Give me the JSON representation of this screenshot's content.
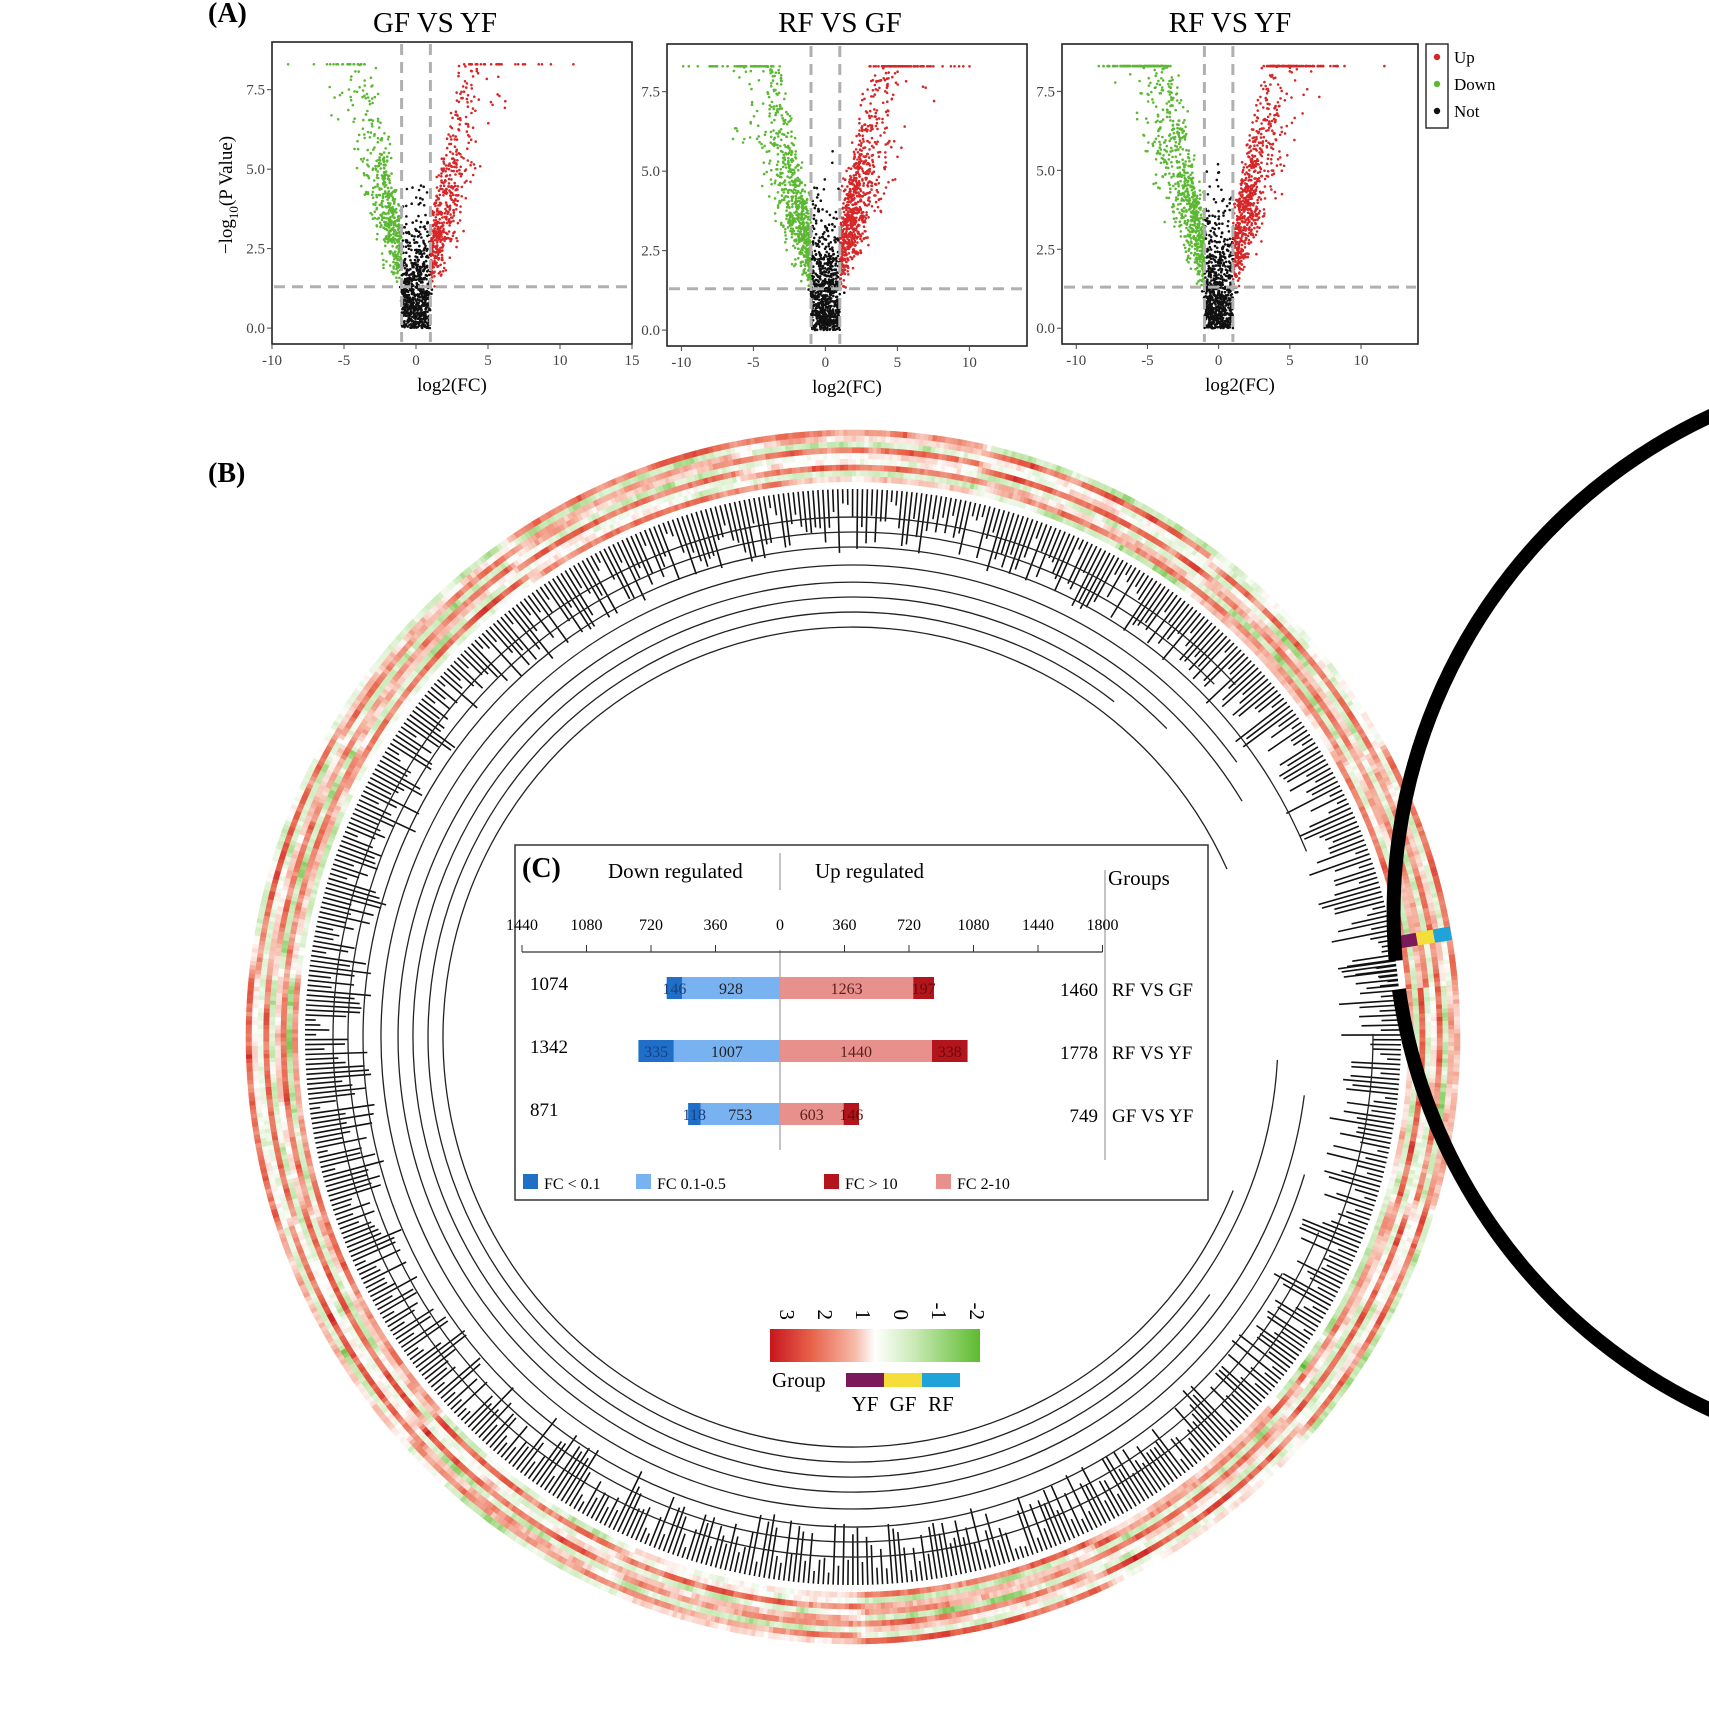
{
  "panels": {
    "a": "(A)",
    "b": "(B)",
    "c": "(C)"
  },
  "chart_data": [
    {
      "type": "scatter",
      "panel": "A",
      "volcano": true,
      "xlabel": "log2(FC)",
      "ylabel_sub": "10",
      "ylabel_main": "(P Value)",
      "ylabel_prefix": "−log",
      "yticks": [
        "0.0",
        "2.5",
        "5.0",
        "7.5"
      ],
      "legend": [
        {
          "name": "Up",
          "color": "#d62728"
        },
        {
          "name": "Down",
          "color": "#5cb833"
        },
        {
          "name": "Not",
          "color": "#111111"
        }
      ],
      "thresholds": {
        "log2fc": [
          -1,
          1
        ],
        "neg_log10_p": 1.3
      },
      "plots": [
        {
          "title": "GF VS YF",
          "xlim": [
            -10,
            15
          ],
          "xticks": [
            "-10",
            "-5",
            "0",
            "5",
            "10",
            "15"
          ],
          "ylim": [
            -0.5,
            9
          ]
        },
        {
          "title": "RF VS GF",
          "xlim": [
            -11,
            14
          ],
          "xticks": [
            "-10",
            "-5",
            "0",
            "5",
            "10"
          ],
          "ylim": [
            -0.5,
            9
          ]
        },
        {
          "title": "RF VS YF",
          "xlim": [
            -11,
            14
          ],
          "xticks": [
            "-10",
            "-5",
            "0",
            "5",
            "10"
          ],
          "ylim": [
            -0.5,
            9
          ]
        }
      ]
    },
    {
      "type": "heatmap",
      "panel": "B",
      "layout": "circular",
      "scale_ticks": [
        "3",
        "2",
        "1",
        "0",
        "-1",
        "-2"
      ],
      "scale_colors": [
        "#c8161d",
        "#e8634b",
        "#f6b8a6",
        "#ffffff",
        "#c5e8b0",
        "#5dbb2e"
      ],
      "group_label": "Group",
      "groups": [
        {
          "name": "YF",
          "color": "#7b1a5a"
        },
        {
          "name": "GF",
          "color": "#f5dd3a"
        },
        {
          "name": "RF",
          "color": "#1fa3d8"
        }
      ]
    },
    {
      "type": "bar",
      "panel": "C",
      "orientation": "horizontal",
      "down_header": "Down regulated",
      "up_header": "Up regulated",
      "groups_header": "Groups",
      "down_ticks": [
        "1440",
        "1080",
        "720",
        "360"
      ],
      "zero_tick": "0",
      "up_ticks": [
        "360",
        "720",
        "1080",
        "1440",
        "1800"
      ],
      "rows": [
        {
          "group": "RF VS GF",
          "down_total": "1074",
          "down_lt01": 146,
          "down_01_05": 928,
          "up_2_10": 1263,
          "up_gt10": 197,
          "up_total": "1460"
        },
        {
          "group": "RF VS YF",
          "down_total": "1342",
          "down_lt01": 335,
          "down_01_05": 1007,
          "up_2_10": 1440,
          "up_gt10": 338,
          "up_total": "1778"
        },
        {
          "group": "GF VS YF",
          "down_total": "871",
          "down_lt01": 118,
          "down_01_05": 753,
          "up_2_10": 603,
          "up_gt10": 146,
          "up_total": "749"
        }
      ],
      "legend": [
        {
          "name": "FC < 0.1",
          "color": "#1f6fc9"
        },
        {
          "name": "FC  0.1-0.5",
          "color": "#79b2f0"
        },
        {
          "name": "FC > 10",
          "color": "#b3151c"
        },
        {
          "name": "FC  2-10",
          "color": "#e8908c"
        }
      ]
    }
  ]
}
